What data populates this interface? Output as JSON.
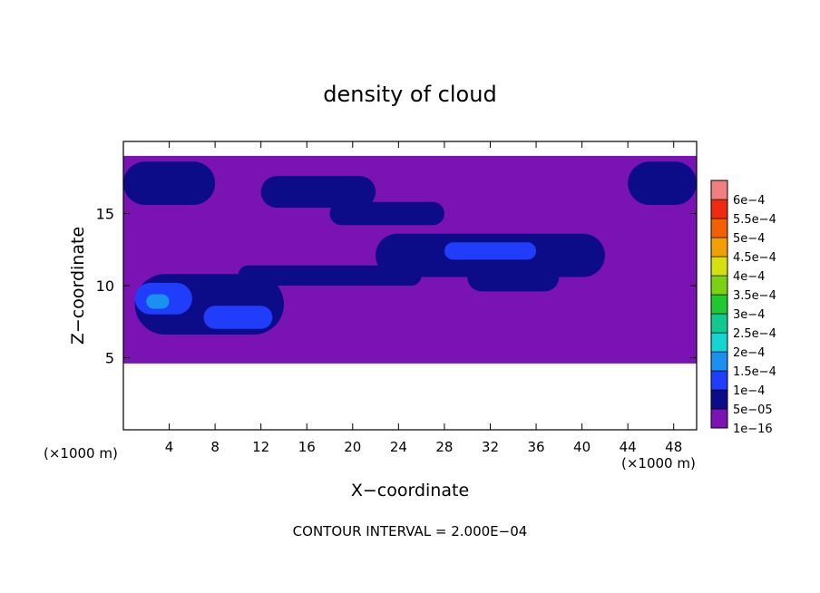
{
  "chart_data": {
    "type": "heatmap",
    "title": "density of cloud",
    "xlabel": "X−coordinate",
    "ylabel": "Z−coordinate",
    "x_unit_left": "(×1000 m)",
    "x_unit_right": "(×1000 m)",
    "xlim": [
      0,
      50
    ],
    "ylim": [
      0,
      20
    ],
    "x_ticks": [
      4,
      8,
      12,
      16,
      20,
      24,
      28,
      32,
      36,
      40,
      44,
      48
    ],
    "x_tick_labels": [
      "4",
      "8",
      "12",
      "16",
      "20",
      "24",
      "28",
      "32",
      "36",
      "40",
      "44",
      "48"
    ],
    "y_ticks": [
      5,
      10,
      15
    ],
    "y_tick_labels": [
      "5",
      "10",
      "15"
    ],
    "footer": "CONTOUR INTERVAL = 2.000E−04",
    "colorbar": {
      "levels": [
        "1e−16",
        "5e−05",
        "1e−4",
        "1.5e−4",
        "2e−4",
        "2.5e−4",
        "3e−4",
        "3.5e−4",
        "4e−4",
        "4.5e−4",
        "5e−4",
        "5.5e−4",
        "6e−4"
      ],
      "colors": [
        "#7a12b4",
        "#0c0c88",
        "#1f3dfb",
        "#1a90f0",
        "#14d4d4",
        "#10c890",
        "#22c832",
        "#7cd210",
        "#d6e010",
        "#f0a000",
        "#f46000",
        "#f02a10",
        "#f08080"
      ]
    },
    "regions": [
      {
        "level": 0,
        "x": [
          0,
          50
        ],
        "z": [
          4.6,
          19
        ]
      },
      {
        "level": 1,
        "x": [
          0,
          8
        ],
        "z": [
          15.6,
          18.6
        ]
      },
      {
        "level": 1,
        "x": [
          44,
          50
        ],
        "z": [
          15.6,
          18.6
        ]
      },
      {
        "level": 1,
        "x": [
          12,
          22
        ],
        "z": [
          15.4,
          17.6
        ]
      },
      {
        "level": 1,
        "x": [
          18,
          28
        ],
        "z": [
          14.2,
          15.8
        ]
      },
      {
        "level": 1,
        "x": [
          22,
          42
        ],
        "z": [
          10.6,
          13.6
        ]
      },
      {
        "level": 1,
        "x": [
          10,
          26
        ],
        "z": [
          10.0,
          11.4
        ]
      },
      {
        "level": 1,
        "x": [
          30,
          38
        ],
        "z": [
          9.6,
          11.6
        ]
      },
      {
        "level": 1,
        "x": [
          1,
          14
        ],
        "z": [
          6.6,
          10.8
        ]
      },
      {
        "level": 2,
        "x": [
          1,
          6
        ],
        "z": [
          8.0,
          10.2
        ]
      },
      {
        "level": 2,
        "x": [
          7,
          13
        ],
        "z": [
          7.0,
          8.6
        ]
      },
      {
        "level": 2,
        "x": [
          28,
          36
        ],
        "z": [
          11.8,
          13.0
        ]
      },
      {
        "level": 3,
        "x": [
          2,
          4
        ],
        "z": [
          8.4,
          9.4
        ]
      }
    ]
  }
}
